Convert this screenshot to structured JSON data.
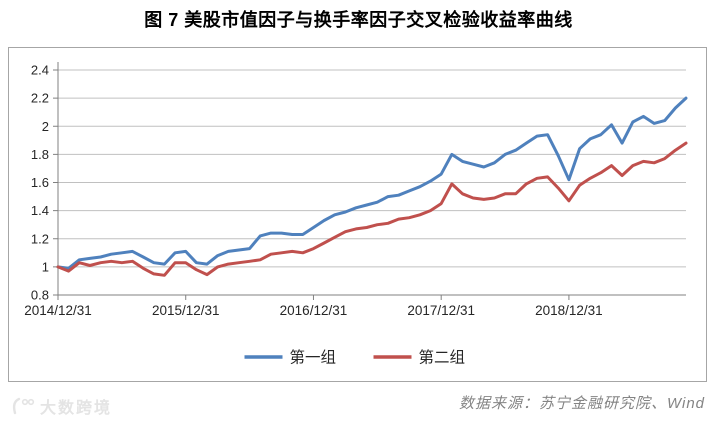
{
  "title": "图 7  美股市值因子与换手率因子交叉检验收益率曲线",
  "footer": {
    "watermark": "大数跨境",
    "source": "数据来源：苏宁金融研究院、Wind"
  },
  "colors": {
    "series1": "#4F81BD",
    "series2": "#C0504D",
    "gridline": "#C0C0C0",
    "axis": "#808080",
    "tick_label": "#262626",
    "chart_border": "#A6A6A6",
    "source_text": "#848484",
    "watermark": "#E4E4E4"
  },
  "chart_data": {
    "type": "line",
    "title": "图 7  美股市值因子与换手率因子交叉检验收益率曲线",
    "xlabel": "",
    "ylabel": "",
    "ylim": [
      0.8,
      2.4
    ],
    "grid": "horizontal",
    "legend_position": "bottom",
    "y_ticks": [
      0.8,
      1.0,
      1.2,
      1.4,
      1.6,
      1.8,
      2.0,
      2.2,
      2.4
    ],
    "y_tick_labels": [
      "0.8",
      "1",
      "1.2",
      "1.4",
      "1.6",
      "1.8",
      "2",
      "2.2",
      "2.4"
    ],
    "x_tick_labels": [
      "2014/12/31",
      "2015/12/31",
      "2016/12/31",
      "2017/12/31",
      "2018/12/31"
    ],
    "x": [
      "2014/12",
      "2015/01",
      "2015/02",
      "2015/03",
      "2015/04",
      "2015/05",
      "2015/06",
      "2015/07",
      "2015/08",
      "2015/09",
      "2015/10",
      "2015/11",
      "2015/12",
      "2016/01",
      "2016/02",
      "2016/03",
      "2016/04",
      "2016/05",
      "2016/06",
      "2016/07",
      "2016/08",
      "2016/09",
      "2016/10",
      "2016/11",
      "2016/12",
      "2017/01",
      "2017/02",
      "2017/03",
      "2017/04",
      "2017/05",
      "2017/06",
      "2017/07",
      "2017/08",
      "2017/09",
      "2017/10",
      "2017/11",
      "2017/12",
      "2018/01",
      "2018/02",
      "2018/03",
      "2018/04",
      "2018/05",
      "2018/06",
      "2018/07",
      "2018/08",
      "2018/09",
      "2018/10",
      "2018/11",
      "2018/12",
      "2019/01",
      "2019/02",
      "2019/03",
      "2019/04",
      "2019/05",
      "2019/06",
      "2019/07",
      "2019/08",
      "2019/09",
      "2019/10",
      "2019/11"
    ],
    "series": [
      {
        "name": "第一组",
        "color": "#4F81BD",
        "values": [
          1.0,
          0.99,
          1.05,
          1.06,
          1.07,
          1.09,
          1.1,
          1.11,
          1.07,
          1.03,
          1.02,
          1.1,
          1.11,
          1.03,
          1.02,
          1.08,
          1.11,
          1.12,
          1.13,
          1.22,
          1.24,
          1.24,
          1.23,
          1.23,
          1.28,
          1.33,
          1.37,
          1.39,
          1.42,
          1.44,
          1.46,
          1.5,
          1.51,
          1.54,
          1.57,
          1.61,
          1.66,
          1.8,
          1.75,
          1.73,
          1.71,
          1.74,
          1.8,
          1.83,
          1.88,
          1.93,
          1.94,
          1.79,
          1.62,
          1.84,
          1.91,
          1.94,
          2.01,
          1.88,
          2.03,
          2.07,
          2.02,
          2.04,
          2.13,
          2.2
        ]
      },
      {
        "name": "第二组",
        "color": "#C0504D",
        "values": [
          1.0,
          0.97,
          1.03,
          1.01,
          1.03,
          1.04,
          1.03,
          1.04,
          0.99,
          0.95,
          0.94,
          1.03,
          1.03,
          0.98,
          0.945,
          1.0,
          1.02,
          1.03,
          1.04,
          1.05,
          1.09,
          1.1,
          1.11,
          1.1,
          1.13,
          1.17,
          1.21,
          1.25,
          1.27,
          1.28,
          1.3,
          1.31,
          1.34,
          1.35,
          1.37,
          1.4,
          1.45,
          1.59,
          1.52,
          1.49,
          1.48,
          1.49,
          1.52,
          1.52,
          1.59,
          1.63,
          1.64,
          1.56,
          1.47,
          1.58,
          1.63,
          1.67,
          1.72,
          1.65,
          1.72,
          1.75,
          1.74,
          1.77,
          1.83,
          1.88
        ]
      }
    ]
  }
}
